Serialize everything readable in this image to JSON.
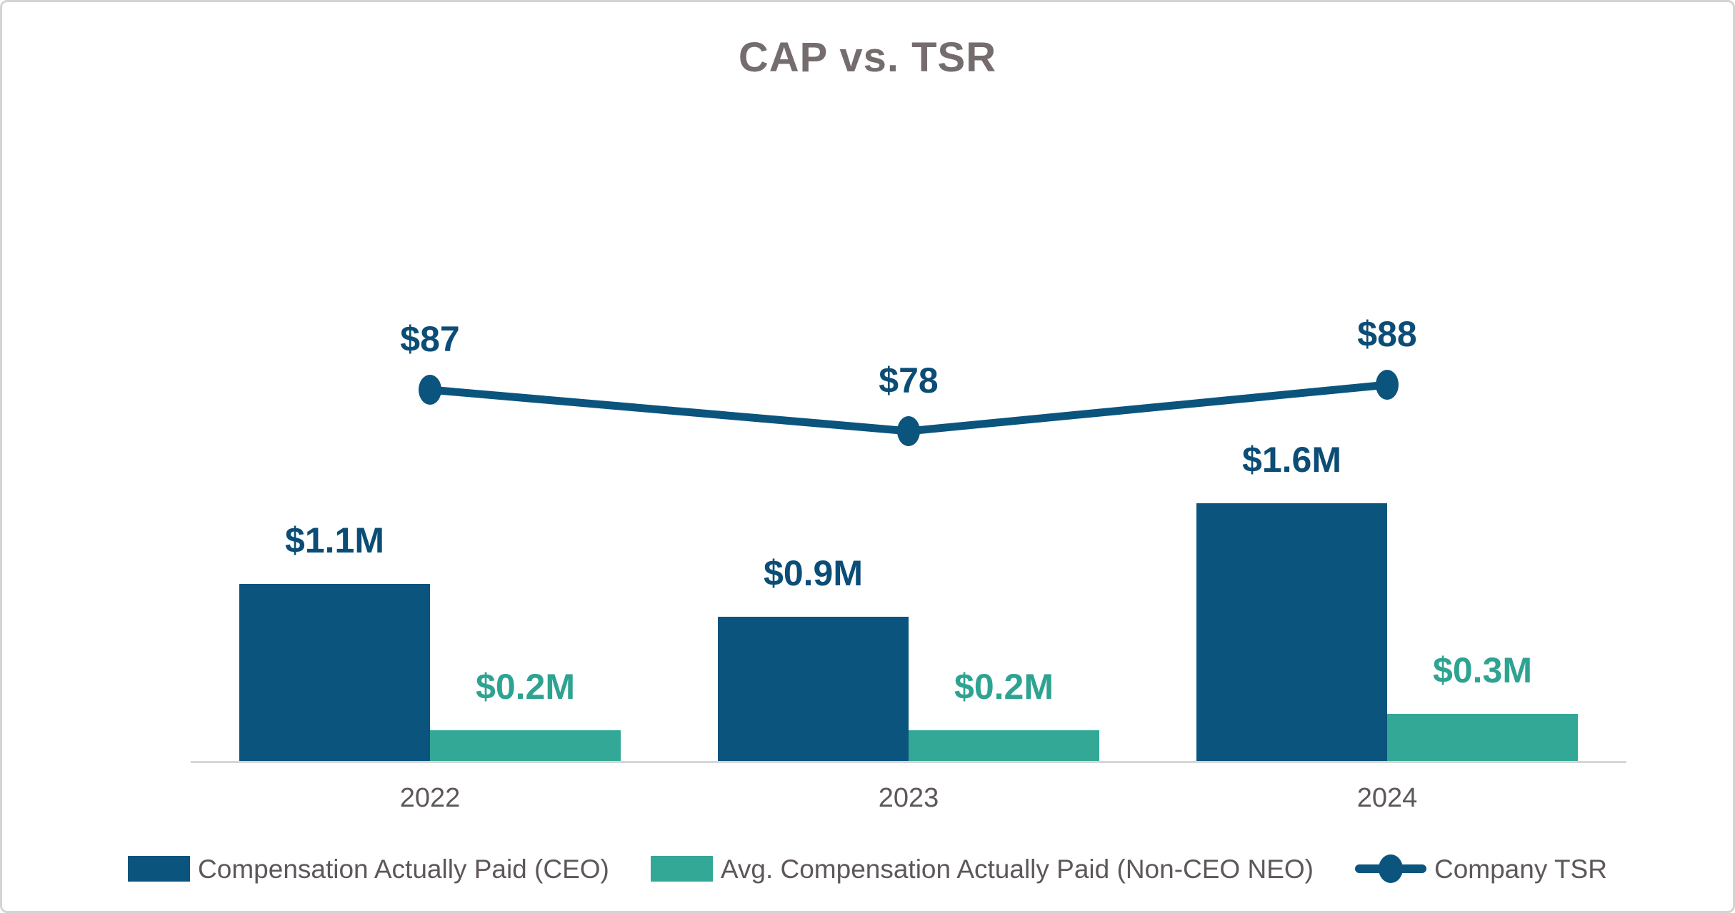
{
  "title": "CAP vs. TSR",
  "colors": {
    "navy": "#0a547d",
    "navy_label": "#0b4d76",
    "teal": "#34a897",
    "teal_label": "#2ea391",
    "title_text": "#756c6d",
    "axis_text": "#5e5758",
    "axis_line": "#d6d6d6",
    "border": "#d7d3d5",
    "background": "#ffffff"
  },
  "chart_data": {
    "type": "bar",
    "subtype": "grouped-bar-with-line",
    "title": "CAP vs. TSR",
    "categories": [
      "2022",
      "2023",
      "2024"
    ],
    "series": [
      {
        "name": "Compensation Actually Paid (CEO)",
        "type": "bar",
        "unit": "$M",
        "values": [
          1.1,
          0.9,
          1.6
        ],
        "labels": [
          "$1.1M",
          "$0.9M",
          "$1.6M"
        ],
        "color": "#0a547d",
        "label_color": "#0b4d76"
      },
      {
        "name": "Avg. Compensation Actually Paid (Non-CEO NEO)",
        "type": "bar",
        "unit": "$M",
        "values": [
          0.2,
          0.2,
          0.3
        ],
        "labels": [
          "$0.2M",
          "$0.2M",
          "$0.3M"
        ],
        "color": "#34a897",
        "label_color": "#2ea391"
      },
      {
        "name": "Company TSR",
        "type": "line",
        "unit": "$",
        "values": [
          87,
          78,
          88
        ],
        "labels": [
          "$87",
          "$78",
          "$88"
        ],
        "color": "#0a547d",
        "label_color": "#0b4d76"
      }
    ],
    "xlabel": "",
    "ylabel": "",
    "grid": false,
    "y_axis_visible": false,
    "legend_position": "bottom"
  }
}
